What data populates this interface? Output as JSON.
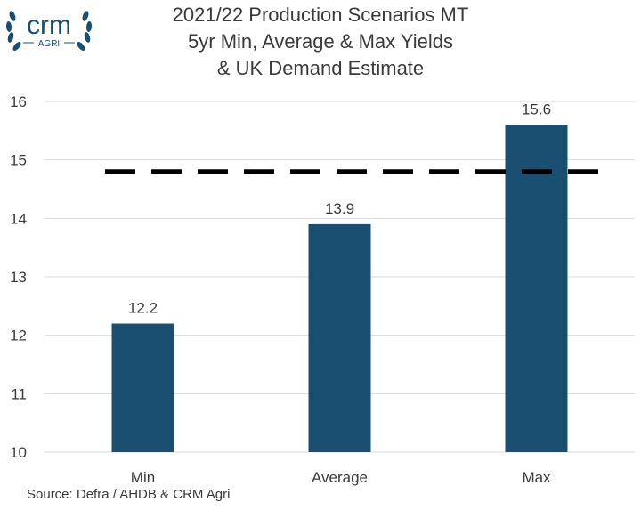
{
  "logo": {
    "brand": "crm",
    "sub": "AGRI"
  },
  "title_lines": [
    "2021/22 Production Scenarios MT",
    "5yr Min, Average & Max Yields",
    "& UK Demand Estimate"
  ],
  "source": "Source: Defra / AHDB & CRM Agri",
  "colors": {
    "bar": "#1b4f72",
    "demand_line": "#000000",
    "grid": "#d9d9d9",
    "text": "#3a3a3a"
  },
  "chart_data": {
    "type": "bar",
    "categories": [
      "Min",
      "Average",
      "Max"
    ],
    "values": [
      12.2,
      13.9,
      15.6
    ],
    "data_labels": [
      "12.2",
      "13.9",
      "15.6"
    ],
    "ylim": [
      10,
      16
    ],
    "yticks": [
      10,
      11,
      12,
      13,
      14,
      15,
      16
    ],
    "grid": true,
    "legend": "none",
    "reference_line": {
      "value": 14.8,
      "style": "dashed"
    }
  }
}
